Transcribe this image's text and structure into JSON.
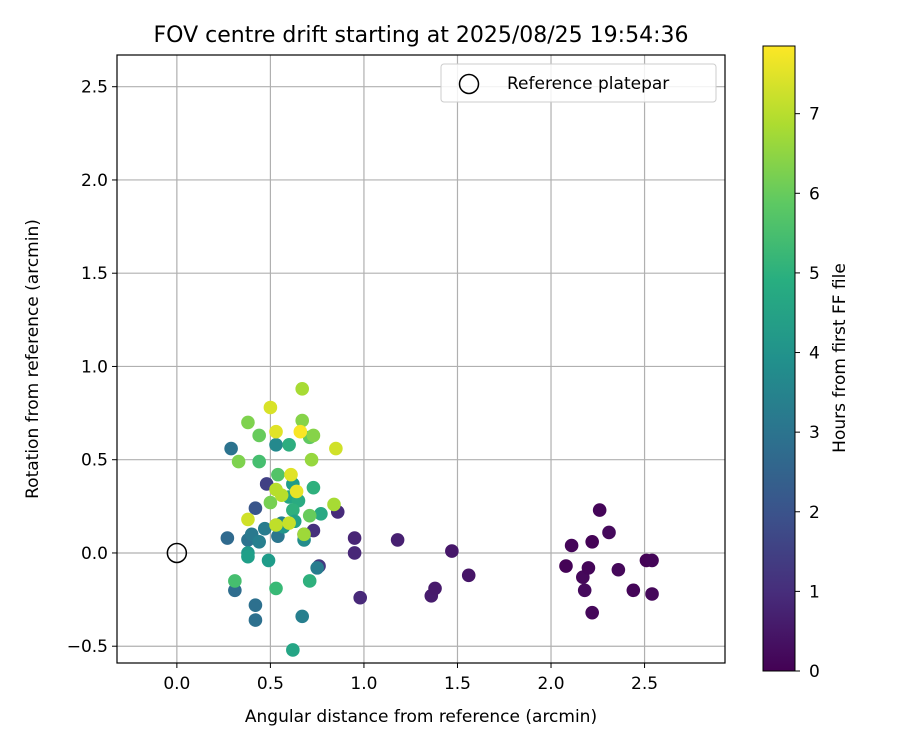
{
  "chart_data": {
    "type": "scatter",
    "title": "FOV centre drift starting at 2025/08/25 19:54:36",
    "xlabel": "Angular distance from reference (arcmin)",
    "ylabel": "Rotation from reference (arcmin)",
    "xlim": [
      -0.32,
      2.93
    ],
    "ylim": [
      -0.59,
      2.67
    ],
    "xticks": [
      0.0,
      0.5,
      1.0,
      1.5,
      2.0,
      2.5
    ],
    "xtick_labels": [
      "0.0",
      "0.5",
      "1.0",
      "1.5",
      "2.0",
      "2.5"
    ],
    "yticks": [
      -0.5,
      0.0,
      0.5,
      1.0,
      1.5,
      2.0,
      2.5
    ],
    "ytick_labels": [
      "−0.5",
      "0.0",
      "0.5",
      "1.0",
      "1.5",
      "2.0",
      "2.5"
    ],
    "grid": true,
    "legend": {
      "position": "upper-right",
      "entries": [
        {
          "label": "Reference platepar",
          "marker": "open-circle"
        }
      ]
    },
    "reference_point": {
      "x": 0.0,
      "y": 0.0
    },
    "colorbar": {
      "label": "Hours from first FF file",
      "colormap": "viridis",
      "range": [
        0,
        7.85
      ],
      "ticks": [
        0,
        1,
        2,
        3,
        4,
        5,
        6,
        7
      ],
      "tick_labels": [
        "0",
        "1",
        "2",
        "3",
        "4",
        "5",
        "6",
        "7"
      ]
    },
    "points": [
      {
        "x": 2.08,
        "y": -0.07,
        "c": 0.05
      },
      {
        "x": 2.11,
        "y": 0.04,
        "c": 0.1
      },
      {
        "x": 2.17,
        "y": -0.13,
        "c": 0.15
      },
      {
        "x": 2.18,
        "y": -0.2,
        "c": 0.2
      },
      {
        "x": 2.2,
        "y": -0.08,
        "c": 0.1
      },
      {
        "x": 2.22,
        "y": 0.06,
        "c": 0.05
      },
      {
        "x": 2.22,
        "y": -0.32,
        "c": 0.15
      },
      {
        "x": 2.26,
        "y": 0.23,
        "c": 0.1
      },
      {
        "x": 2.31,
        "y": 0.11,
        "c": 0.2
      },
      {
        "x": 2.36,
        "y": -0.09,
        "c": 0.15
      },
      {
        "x": 2.44,
        "y": -0.2,
        "c": 0.1
      },
      {
        "x": 2.51,
        "y": -0.04,
        "c": 0.05
      },
      {
        "x": 2.54,
        "y": -0.04,
        "c": 0.1
      },
      {
        "x": 2.54,
        "y": -0.22,
        "c": 0.15
      },
      {
        "x": 1.18,
        "y": 0.07,
        "c": 0.7
      },
      {
        "x": 1.36,
        "y": -0.23,
        "c": 0.6
      },
      {
        "x": 1.38,
        "y": -0.19,
        "c": 0.55
      },
      {
        "x": 1.47,
        "y": 0.01,
        "c": 0.5
      },
      {
        "x": 1.56,
        "y": -0.12,
        "c": 0.45
      },
      {
        "x": 0.95,
        "y": 0.08,
        "c": 0.8
      },
      {
        "x": 0.95,
        "y": 0.0,
        "c": 0.85
      },
      {
        "x": 0.98,
        "y": -0.24,
        "c": 0.9
      },
      {
        "x": 0.86,
        "y": 0.22,
        "c": 0.95
      },
      {
        "x": 0.73,
        "y": 0.12,
        "c": 1.1
      },
      {
        "x": 0.68,
        "y": 0.1,
        "c": 1.2
      },
      {
        "x": 0.76,
        "y": -0.07,
        "c": 1.3
      },
      {
        "x": 0.48,
        "y": 0.37,
        "c": 1.5
      },
      {
        "x": 0.42,
        "y": 0.24,
        "c": 2.1
      },
      {
        "x": 0.27,
        "y": 0.08,
        "c": 2.7
      },
      {
        "x": 0.31,
        "y": -0.2,
        "c": 2.8
      },
      {
        "x": 0.42,
        "y": -0.28,
        "c": 2.9
      },
      {
        "x": 0.42,
        "y": -0.36,
        "c": 2.9
      },
      {
        "x": 0.29,
        "y": 0.56,
        "c": 3.0
      },
      {
        "x": 0.38,
        "y": 0.07,
        "c": 3.0
      },
      {
        "x": 0.4,
        "y": 0.1,
        "c": 3.2
      },
      {
        "x": 0.44,
        "y": 0.06,
        "c": 3.4
      },
      {
        "x": 0.47,
        "y": 0.13,
        "c": 3.3
      },
      {
        "x": 0.54,
        "y": 0.09,
        "c": 3.1
      },
      {
        "x": 0.56,
        "y": 0.16,
        "c": 3.5
      },
      {
        "x": 0.67,
        "y": -0.34,
        "c": 3.4
      },
      {
        "x": 0.75,
        "y": -0.08,
        "c": 3.3
      },
      {
        "x": 0.68,
        "y": 0.07,
        "c": 3.8
      },
      {
        "x": 0.53,
        "y": 0.58,
        "c": 3.7
      },
      {
        "x": 0.38,
        "y": 0.0,
        "c": 4.2
      },
      {
        "x": 0.38,
        "y": -0.02,
        "c": 4.4
      },
      {
        "x": 0.49,
        "y": -0.04,
        "c": 4.3
      },
      {
        "x": 0.57,
        "y": 0.14,
        "c": 4.1
      },
      {
        "x": 0.6,
        "y": 0.3,
        "c": 4.6
      },
      {
        "x": 0.62,
        "y": 0.37,
        "c": 4.3
      },
      {
        "x": 0.65,
        "y": 0.28,
        "c": 4.8
      },
      {
        "x": 0.62,
        "y": 0.23,
        "c": 5.0
      },
      {
        "x": 0.63,
        "y": 0.17,
        "c": 4.5
      },
      {
        "x": 0.62,
        "y": -0.52,
        "c": 4.6
      },
      {
        "x": 0.71,
        "y": -0.15,
        "c": 5.0
      },
      {
        "x": 0.77,
        "y": 0.21,
        "c": 4.7
      },
      {
        "x": 0.73,
        "y": 0.35,
        "c": 5.0
      },
      {
        "x": 0.6,
        "y": 0.58,
        "c": 4.9
      },
      {
        "x": 0.53,
        "y": -0.19,
        "c": 5.3
      },
      {
        "x": 0.31,
        "y": -0.15,
        "c": 5.5
      },
      {
        "x": 0.44,
        "y": 0.49,
        "c": 5.5
      },
      {
        "x": 0.54,
        "y": 0.42,
        "c": 5.7
      },
      {
        "x": 0.71,
        "y": 0.62,
        "c": 5.9
      },
      {
        "x": 0.71,
        "y": 0.2,
        "c": 6.0
      },
      {
        "x": 0.44,
        "y": 0.63,
        "c": 6.0
      },
      {
        "x": 0.5,
        "y": 0.27,
        "c": 6.2
      },
      {
        "x": 0.38,
        "y": 0.7,
        "c": 6.3
      },
      {
        "x": 0.33,
        "y": 0.49,
        "c": 6.3
      },
      {
        "x": 0.73,
        "y": 0.63,
        "c": 6.4
      },
      {
        "x": 0.67,
        "y": 0.71,
        "c": 6.4
      },
      {
        "x": 0.72,
        "y": 0.5,
        "c": 6.6
      },
      {
        "x": 0.67,
        "y": 0.88,
        "c": 6.8
      },
      {
        "x": 0.68,
        "y": 0.1,
        "c": 6.7
      },
      {
        "x": 0.84,
        "y": 0.26,
        "c": 6.8
      },
      {
        "x": 0.53,
        "y": 0.34,
        "c": 7.0
      },
      {
        "x": 0.56,
        "y": 0.31,
        "c": 7.0
      },
      {
        "x": 0.53,
        "y": 0.15,
        "c": 7.1
      },
      {
        "x": 0.6,
        "y": 0.16,
        "c": 7.2
      },
      {
        "x": 0.38,
        "y": 0.18,
        "c": 7.3
      },
      {
        "x": 0.85,
        "y": 0.56,
        "c": 7.3
      },
      {
        "x": 0.5,
        "y": 0.78,
        "c": 7.4
      },
      {
        "x": 0.53,
        "y": 0.65,
        "c": 7.5
      },
      {
        "x": 0.61,
        "y": 0.42,
        "c": 7.5
      },
      {
        "x": 0.64,
        "y": 0.33,
        "c": 7.6
      },
      {
        "x": 0.66,
        "y": 0.65,
        "c": 7.8
      }
    ]
  }
}
